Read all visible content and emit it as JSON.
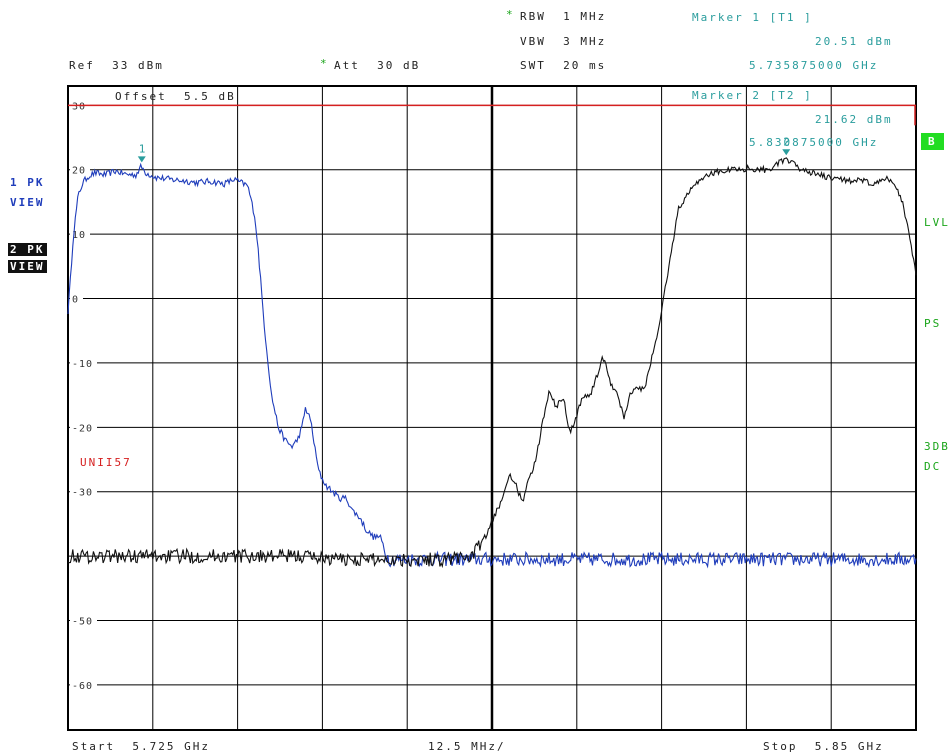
{
  "header": {
    "rbw": "RBW  1 MHz",
    "vbw": "VBW  3 MHz",
    "swt": "SWT  20 ms",
    "ref": "Ref  33 dBm",
    "att": "Att  30 dB",
    "star": "*"
  },
  "marker1": {
    "title": "Marker 1 [T1 ]",
    "level": "20.51 dBm",
    "freq": "5.735875000 GHz"
  },
  "marker2": {
    "title": "Marker 2 [T2 ]",
    "level": "21.62 dBm",
    "freq": "5.830875000 GHz"
  },
  "offset": "Offset  5.5 dB",
  "limit_label": "UNII57",
  "left_labels": {
    "trace1": "1 PK",
    "view1": "VIEW",
    "trace2": "2 PK",
    "view2": "VIEW"
  },
  "right_labels": {
    "b": "B",
    "lvl": "LVL",
    "ps": "PS",
    "db3": "3DB",
    "dc": "DC"
  },
  "footer": {
    "start": "Start  5.725 GHz",
    "span": "12.5 MHz/",
    "stop": "Stop  5.85 GHz"
  },
  "colors": {
    "trace1": "#1f3dbb",
    "trace2": "#111111",
    "limit": "#d62020",
    "marker": "#2a9d9d",
    "grid": "#000000"
  },
  "chart_data": {
    "type": "line",
    "title": "",
    "xlabel": "",
    "ylabel": "",
    "xlim": [
      5.725,
      5.85
    ],
    "ylim": [
      -67,
      33
    ],
    "grid": true,
    "y_ticks": [
      30,
      20,
      10,
      0,
      -10,
      -20,
      -30,
      -40,
      -50,
      -60
    ],
    "y_tick_labels": [
      "30",
      "20",
      "10",
      "0",
      "-10",
      "-20",
      "-30",
      "",
      "-50",
      "-60"
    ],
    "limit_line": 30,
    "markers": [
      {
        "label": "1",
        "x": 5.735875,
        "y": 20.51
      },
      {
        "label": "2",
        "x": 5.830875,
        "y": 21.62
      }
    ],
    "series": [
      {
        "x": [
          5.725,
          5.7253,
          5.7258,
          5.7265,
          5.7272,
          5.728,
          5.729,
          5.7305,
          5.732,
          5.7335,
          5.735,
          5.7358,
          5.7365,
          5.738,
          5.74,
          5.742,
          5.744,
          5.746,
          5.748,
          5.7495,
          5.7505,
          5.7515,
          5.7525,
          5.753,
          5.754,
          5.755,
          5.756,
          5.757,
          5.758,
          5.7588,
          5.7595,
          5.76,
          5.7608,
          5.7615,
          5.762,
          5.763,
          5.764,
          5.765,
          5.766,
          5.767,
          5.768,
          5.769,
          5.77,
          5.771,
          5.772,
          5.7725,
          5.775,
          5.78,
          5.785,
          5.79,
          5.795,
          5.8,
          5.805,
          5.81,
          5.815,
          5.82,
          5.825,
          5.83,
          5.835,
          5.84,
          5.845,
          5.85
        ],
        "y": [
          -2,
          2,
          10,
          16,
          18,
          19,
          19.5,
          19.2,
          19.8,
          19.3,
          19.2,
          20.5,
          19.5,
          18.8,
          18.5,
          18.3,
          18,
          18.2,
          17.8,
          18.5,
          18,
          17.5,
          13,
          8,
          -5,
          -15,
          -20,
          -22,
          -23,
          -22,
          -20,
          -17,
          -19,
          -24,
          -27,
          -29,
          -30,
          -31,
          -31,
          -33,
          -34,
          -36,
          -37,
          -37,
          -40,
          -40.5,
          -40.5,
          -40.5,
          -40.5,
          -40.5,
          -40.5,
          -40.5,
          -40.5,
          -40.5,
          -40.5,
          -40.5,
          -40.5,
          -40.5,
          -40.5,
          -40.5,
          -40.5,
          -40.5
        ]
      },
      {
        "x": [
          5.725,
          5.73,
          5.74,
          5.75,
          5.76,
          5.765,
          5.77,
          5.775,
          5.78,
          5.7845,
          5.786,
          5.787,
          5.788,
          5.789,
          5.7895,
          5.79,
          5.791,
          5.792,
          5.793,
          5.794,
          5.795,
          5.796,
          5.797,
          5.798,
          5.799,
          5.8,
          5.801,
          5.802,
          5.803,
          5.8038,
          5.805,
          5.806,
          5.807,
          5.808,
          5.809,
          5.81,
          5.812,
          5.815,
          5.8175,
          5.82,
          5.8225,
          5.825,
          5.828,
          5.8309,
          5.8325,
          5.835,
          5.8375,
          5.84,
          5.842,
          5.844,
          5.846,
          5.847,
          5.848,
          5.849,
          5.85
        ],
        "y": [
          -40,
          -40,
          -40,
          -40,
          -40,
          -40.5,
          -40.5,
          -40.5,
          -40.5,
          -40,
          -38,
          -36,
          -33.5,
          -31,
          -29,
          -27.5,
          -29,
          -31.5,
          -28,
          -25,
          -19,
          -14,
          -17,
          -15,
          -21,
          -18,
          -15,
          -15,
          -12,
          -9,
          -13,
          -15,
          -18.5,
          -14.5,
          -14,
          -14,
          -5,
          14,
          18,
          19.5,
          20,
          20.2,
          20,
          21.6,
          20.4,
          19.4,
          18.6,
          18.4,
          18.2,
          17.8,
          18.6,
          17.5,
          15,
          10,
          4
        ]
      }
    ]
  }
}
